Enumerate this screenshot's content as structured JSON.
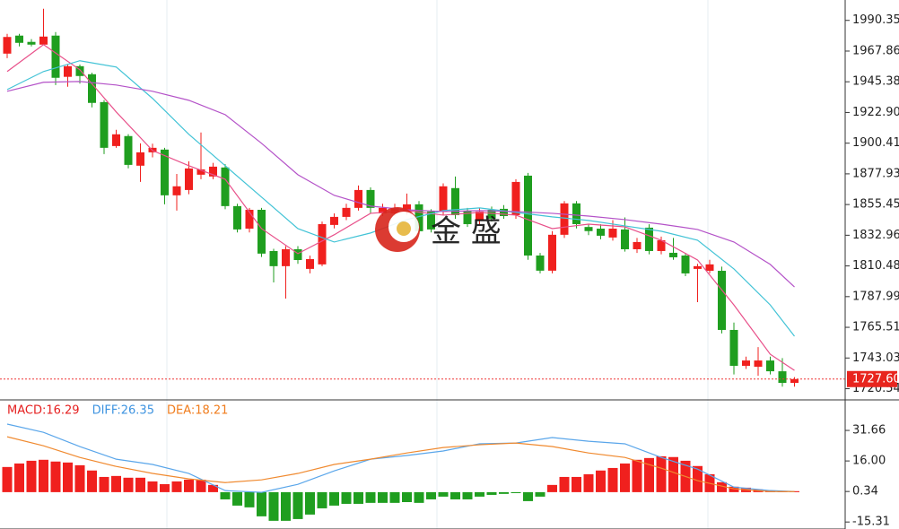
{
  "chart_data": [
    {
      "type": "candlestick",
      "open": [
        1966.0,
        1979.2,
        1974.6,
        1972.6,
        1979.2,
        1949.0,
        1956.8,
        1950.9,
        1930.5,
        1898.3,
        1905.6,
        1883.9,
        1893.7,
        1895.7,
        1862.2,
        1866.1,
        1877.3,
        1876.0,
        1882.6,
        1854.3,
        1837.8,
        1851.6,
        1821.4,
        1810.3,
        1822.7,
        1808.3,
        1811.6,
        1840.5,
        1846.4,
        1853.0,
        1866.1,
        1849.0,
        1849.0,
        1850.3,
        1855.6,
        1850.3,
        1850.3,
        1867.5,
        1851.0,
        1843.8,
        1851.6,
        1852.3,
        1847.7,
        1876.6,
        1818.1,
        1807.0,
        1833.3,
        1856.3,
        1839.0,
        1837.8,
        1831.3,
        1837.2,
        1822.7,
        1838.5,
        1821.4,
        1820.1,
        1818.1,
        1808.3,
        1806.9,
        1806.9,
        1763.6,
        1737.3,
        1736.6,
        1741.2,
        1733.3,
        1724.8
      ],
      "high": [
        1980.5,
        1980.5,
        1976.6,
        1998.9,
        1981.8,
        1958.0,
        1958.0,
        1952.0,
        1932.0,
        1910.2,
        1907.0,
        1900.3,
        1900.0,
        1897.0,
        1877.9,
        1887.1,
        1908.2,
        1886.0,
        1885.0,
        1856.0,
        1853.0,
        1853.0,
        1823.0,
        1825.0,
        1825.0,
        1818.0,
        1843.0,
        1849.0,
        1856.0,
        1869.4,
        1868.0,
        1856.0,
        1856.0,
        1863.5,
        1858.0,
        1852.0,
        1871.0,
        1876.0,
        1853.0,
        1853.0,
        1854.0,
        1855.0,
        1874.0,
        1878.6,
        1820.0,
        1836.0,
        1858.0,
        1858.0,
        1841.0,
        1841.0,
        1844.0,
        1846.0,
        1831.0,
        1841.0,
        1832.0,
        1831.0,
        1820.0,
        1812.0,
        1815.0,
        1810.0,
        1769.0,
        1744.0,
        1751.0,
        1744.0,
        1743.0,
        1729.0
      ],
      "low": [
        1962.7,
        1971.3,
        1971.3,
        1972.6,
        1943.0,
        1941.7,
        1944.0,
        1926.6,
        1892.4,
        1897.0,
        1882.0,
        1872.0,
        1890.0,
        1855.6,
        1851.0,
        1863.0,
        1874.0,
        1874.0,
        1852.0,
        1835.0,
        1835.0,
        1817.0,
        1798.4,
        1786.6,
        1812.0,
        1805.0,
        1810.3,
        1838.0,
        1844.0,
        1851.0,
        1849.0,
        1847.0,
        1847.0,
        1848.0,
        1834.0,
        1835.0,
        1848.0,
        1845.0,
        1839.0,
        1841.0,
        1843.0,
        1845.0,
        1845.0,
        1815.0,
        1805.0,
        1805.0,
        1831.0,
        1838.0,
        1833.0,
        1830.0,
        1829.0,
        1821.0,
        1820.0,
        1819.0,
        1819.0,
        1815.0,
        1803.0,
        1783.9,
        1805.0,
        1761.0,
        1731.0,
        1735.0,
        1730.0,
        1731.0,
        1722.0,
        1722.0
      ],
      "close": [
        1978.2,
        1973.9,
        1972.6,
        1978.5,
        1948.3,
        1956.8,
        1949.6,
        1929.9,
        1897.0,
        1906.9,
        1884.5,
        1893.7,
        1897.0,
        1862.2,
        1868.8,
        1881.9,
        1881.2,
        1883.2,
        1854.3,
        1837.2,
        1851.6,
        1819.5,
        1810.3,
        1822.7,
        1814.8,
        1815.5,
        1841.1,
        1846.4,
        1853.0,
        1866.1,
        1853.0,
        1853.0,
        1853.0,
        1855.6,
        1835.9,
        1837.2,
        1868.8,
        1847.7,
        1841.1,
        1850.3,
        1845.1,
        1847.0,
        1872.0,
        1818.1,
        1807.0,
        1833.3,
        1856.3,
        1841.1,
        1836.0,
        1832.6,
        1837.8,
        1822.7,
        1828.0,
        1821.4,
        1829.3,
        1816.8,
        1805.0,
        1810.3,
        1811.6,
        1763.6,
        1737.3,
        1741.2,
        1741.2,
        1733.3,
        1724.8,
        1727.6
      ],
      "up_color": "#f0201e",
      "down_color": "#1f9e1f",
      "series": [
        {
          "color": "#e8508a",
          "x": [
            0,
            3,
            6,
            9,
            12,
            15,
            18,
            21,
            24,
            27,
            30,
            33,
            36,
            39,
            42,
            45,
            48,
            51,
            54,
            57,
            60,
            63,
            65
          ],
          "values": [
            1952.9,
            1972.6,
            1954.2,
            1923.3,
            1895.0,
            1883.9,
            1874.0,
            1837.8,
            1819.5,
            1833.3,
            1849.0,
            1851.0,
            1847.7,
            1849.7,
            1847.7,
            1837.8,
            1841.1,
            1839.1,
            1829.3,
            1814.8,
            1781.9,
            1745.8,
            1733.9
          ]
        },
        {
          "color": "#42c3d6",
          "x": [
            0,
            3,
            6,
            9,
            12,
            15,
            18,
            21,
            24,
            27,
            30,
            33,
            36,
            39,
            42,
            45,
            48,
            51,
            54,
            57,
            60,
            63,
            65
          ],
          "values": [
            1939.7,
            1952.9,
            1960.8,
            1956.2,
            1933.2,
            1906.9,
            1883.9,
            1860.9,
            1837.8,
            1828.0,
            1834.6,
            1844.4,
            1851.0,
            1853.0,
            1849.7,
            1846.4,
            1843.8,
            1839.8,
            1835.9,
            1829.3,
            1808.3,
            1781.9,
            1759.0
          ]
        },
        {
          "color": "#b452c8",
          "x": [
            0,
            3,
            6,
            9,
            12,
            15,
            18,
            21,
            24,
            27,
            30,
            33,
            36,
            39,
            42,
            45,
            48,
            51,
            54,
            57,
            60,
            63,
            65
          ],
          "values": [
            1938.4,
            1945.0,
            1945.6,
            1943.0,
            1938.4,
            1931.8,
            1921.3,
            1900.3,
            1877.3,
            1862.2,
            1854.3,
            1851.6,
            1850.3,
            1851.0,
            1850.3,
            1849.0,
            1847.0,
            1844.4,
            1841.1,
            1837.2,
            1828.0,
            1811.6,
            1795.1
          ]
        }
      ],
      "ylim": [
        1713,
        2002
      ],
      "yticks": [
        1990.35,
        1967.86,
        1945.38,
        {
          "value": 1922.9,
          "label": "1922.90"
        },
        1900.41,
        1877.93,
        1855.45,
        1832.96,
        1810.48,
        1787.99,
        1765.51,
        1743.03,
        1720.54
      ],
      "last_price": {
        "value": 1727.6,
        "label": "1727.60"
      },
      "watermark": "金 盛"
    },
    {
      "type": "macd",
      "labels": [
        {
          "text": "MACD:16.29",
          "color": "#e52020"
        },
        {
          "text": "DIFF:26.35",
          "color": "#3d93e0"
        },
        {
          "text": "DEA:18.21",
          "color": "#f07d1e"
        }
      ],
      "histogram": [
        12.9,
        14.7,
        16.1,
        16.6,
        15.7,
        15.2,
        13.8,
        11.1,
        7.8,
        8.3,
        7.4,
        7.4,
        5.5,
        4.1,
        5.5,
        6.4,
        6.4,
        3.7,
        -3.7,
        -6.9,
        -7.8,
        -12.4,
        -14.7,
        -14.7,
        -13.8,
        -11.5,
        -8.3,
        -6.9,
        -6.0,
        -6.0,
        -5.5,
        -5.5,
        -5.5,
        -5.1,
        -5.5,
        -3.7,
        -2.3,
        -3.7,
        -3.7,
        -2.3,
        -1.4,
        -0.9,
        -0.5,
        -4.6,
        -2.3,
        3.7,
        7.8,
        7.8,
        9.2,
        11.1,
        12.4,
        14.7,
        16.6,
        17.5,
        18.4,
        18.0,
        16.1,
        13.4,
        9.2,
        5.1,
        2.8,
        2.3,
        1.4,
        0.9,
        0.5,
        0.5
      ],
      "up_color": "#f0201e",
      "down_color": "#1f9e1f",
      "series": [
        {
          "color": "#5aa6ea",
          "x": [
            0,
            3,
            6,
            9,
            12,
            15,
            18,
            21,
            24,
            27,
            30,
            33,
            36,
            39,
            42,
            45,
            48,
            51,
            54,
            57,
            60,
            63,
            65
          ],
          "values": [
            34.9,
            30.7,
            23.4,
            16.9,
            14.2,
            9.6,
            0.8,
            -0.1,
            4.0,
            10.9,
            16.9,
            18.8,
            21.1,
            24.8,
            25.2,
            28.0,
            26.1,
            24.8,
            17.8,
            11.8,
            2.6,
            0.8,
            0.3
          ]
        },
        {
          "color": "#f08a30",
          "x": [
            0,
            3,
            6,
            9,
            12,
            15,
            18,
            21,
            24,
            27,
            30,
            33,
            36,
            39,
            42,
            45,
            48,
            51,
            54,
            57,
            60,
            63,
            65
          ],
          "values": [
            28.4,
            23.8,
            17.8,
            13.2,
            9.6,
            6.8,
            4.9,
            6.3,
            9.6,
            14.2,
            16.9,
            20.1,
            22.9,
            24.3,
            25.2,
            23.4,
            20.1,
            17.8,
            12.3,
            5.9,
            1.7,
            0.3,
            0.3
          ]
        }
      ],
      "ylim": [
        -18.9,
        46.4
      ],
      "yticks": [
        31.66,
        {
          "value": 16,
          "label": "16.00"
        },
        0.34,
        -15.31
      ]
    }
  ]
}
